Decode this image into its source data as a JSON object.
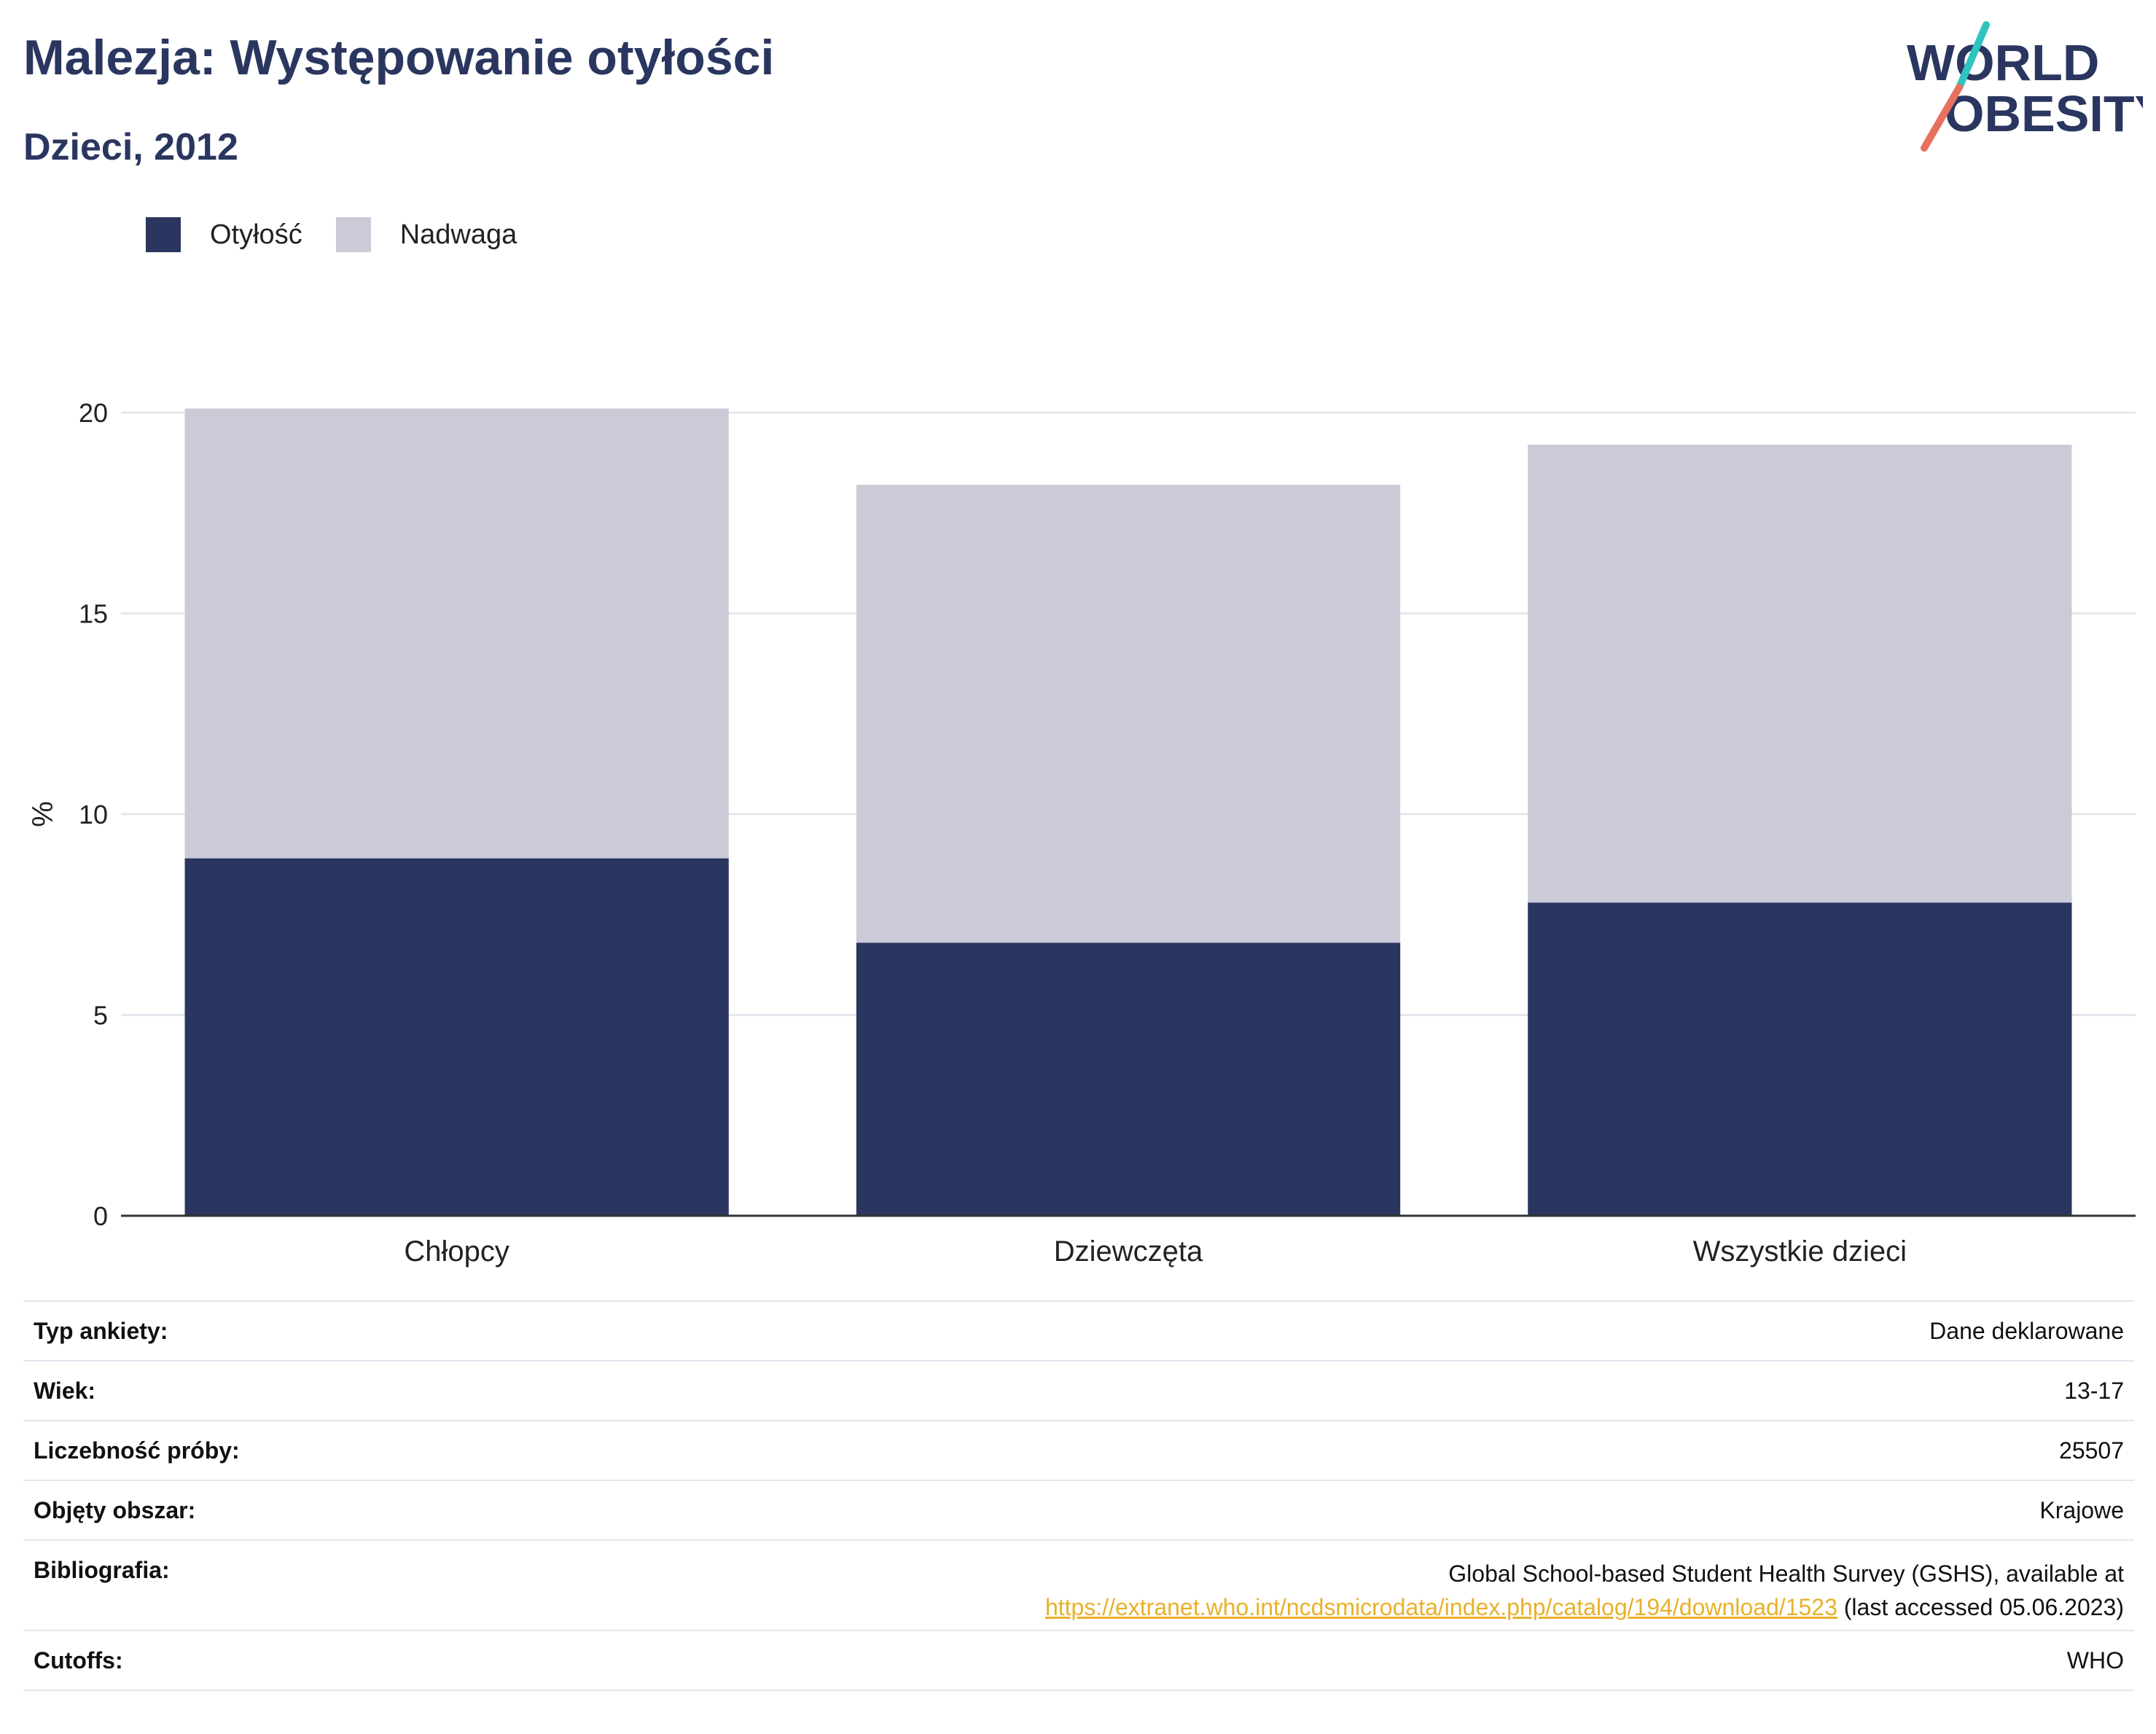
{
  "header": {
    "title": "Malezja: Występowanie otyłości",
    "subtitle": "Dzieci, 2012"
  },
  "logo": {
    "line1": "WORLD",
    "line2": "OBESITY"
  },
  "colors": {
    "obesity": "#2a365f",
    "overweight": "#cacbd7",
    "link": "#e8b12a",
    "logo_teal": "#2ec4c0",
    "logo_coral": "#e8705e"
  },
  "legend": [
    {
      "label": "Otyłość",
      "color": "#2a365f"
    },
    {
      "label": "Nadwaga",
      "color": "#cacbd7"
    }
  ],
  "chart_data": {
    "type": "bar",
    "stacked": true,
    "categories": [
      "Chłopcy",
      "Dziewczęta",
      "Wszystkie dzieci"
    ],
    "series": [
      {
        "name": "Otyłość",
        "values": [
          8.9,
          6.8,
          7.8
        ],
        "color": "#2a365f"
      },
      {
        "name": "Nadwaga",
        "values": [
          11.2,
          11.4,
          11.4
        ],
        "color": "#cacbd7"
      }
    ],
    "ylabel": "%",
    "ylim": [
      0,
      20
    ],
    "yticks": [
      "0",
      "5",
      "10",
      "15",
      "20"
    ],
    "grid": true,
    "legend_position": "top-left"
  },
  "info": [
    {
      "key": "Typ ankiety:",
      "value": "Dane deklarowane"
    },
    {
      "key": "Wiek:",
      "value": "13-17"
    },
    {
      "key": "Liczebność próby:",
      "value": "25507"
    },
    {
      "key": "Objęty obszar:",
      "value": "Krajowe"
    },
    {
      "key": "Bibliografia:",
      "value_line1": "Global School-based Student Health Survey (GSHS), available at",
      "link": "https://extranet.who.int/ncdsmicrodata/index.php/catalog/194/download/1523",
      "link_suffix": " (last accessed 05.06.2023)"
    },
    {
      "key": "Cutoffs:",
      "value": "WHO"
    }
  ]
}
